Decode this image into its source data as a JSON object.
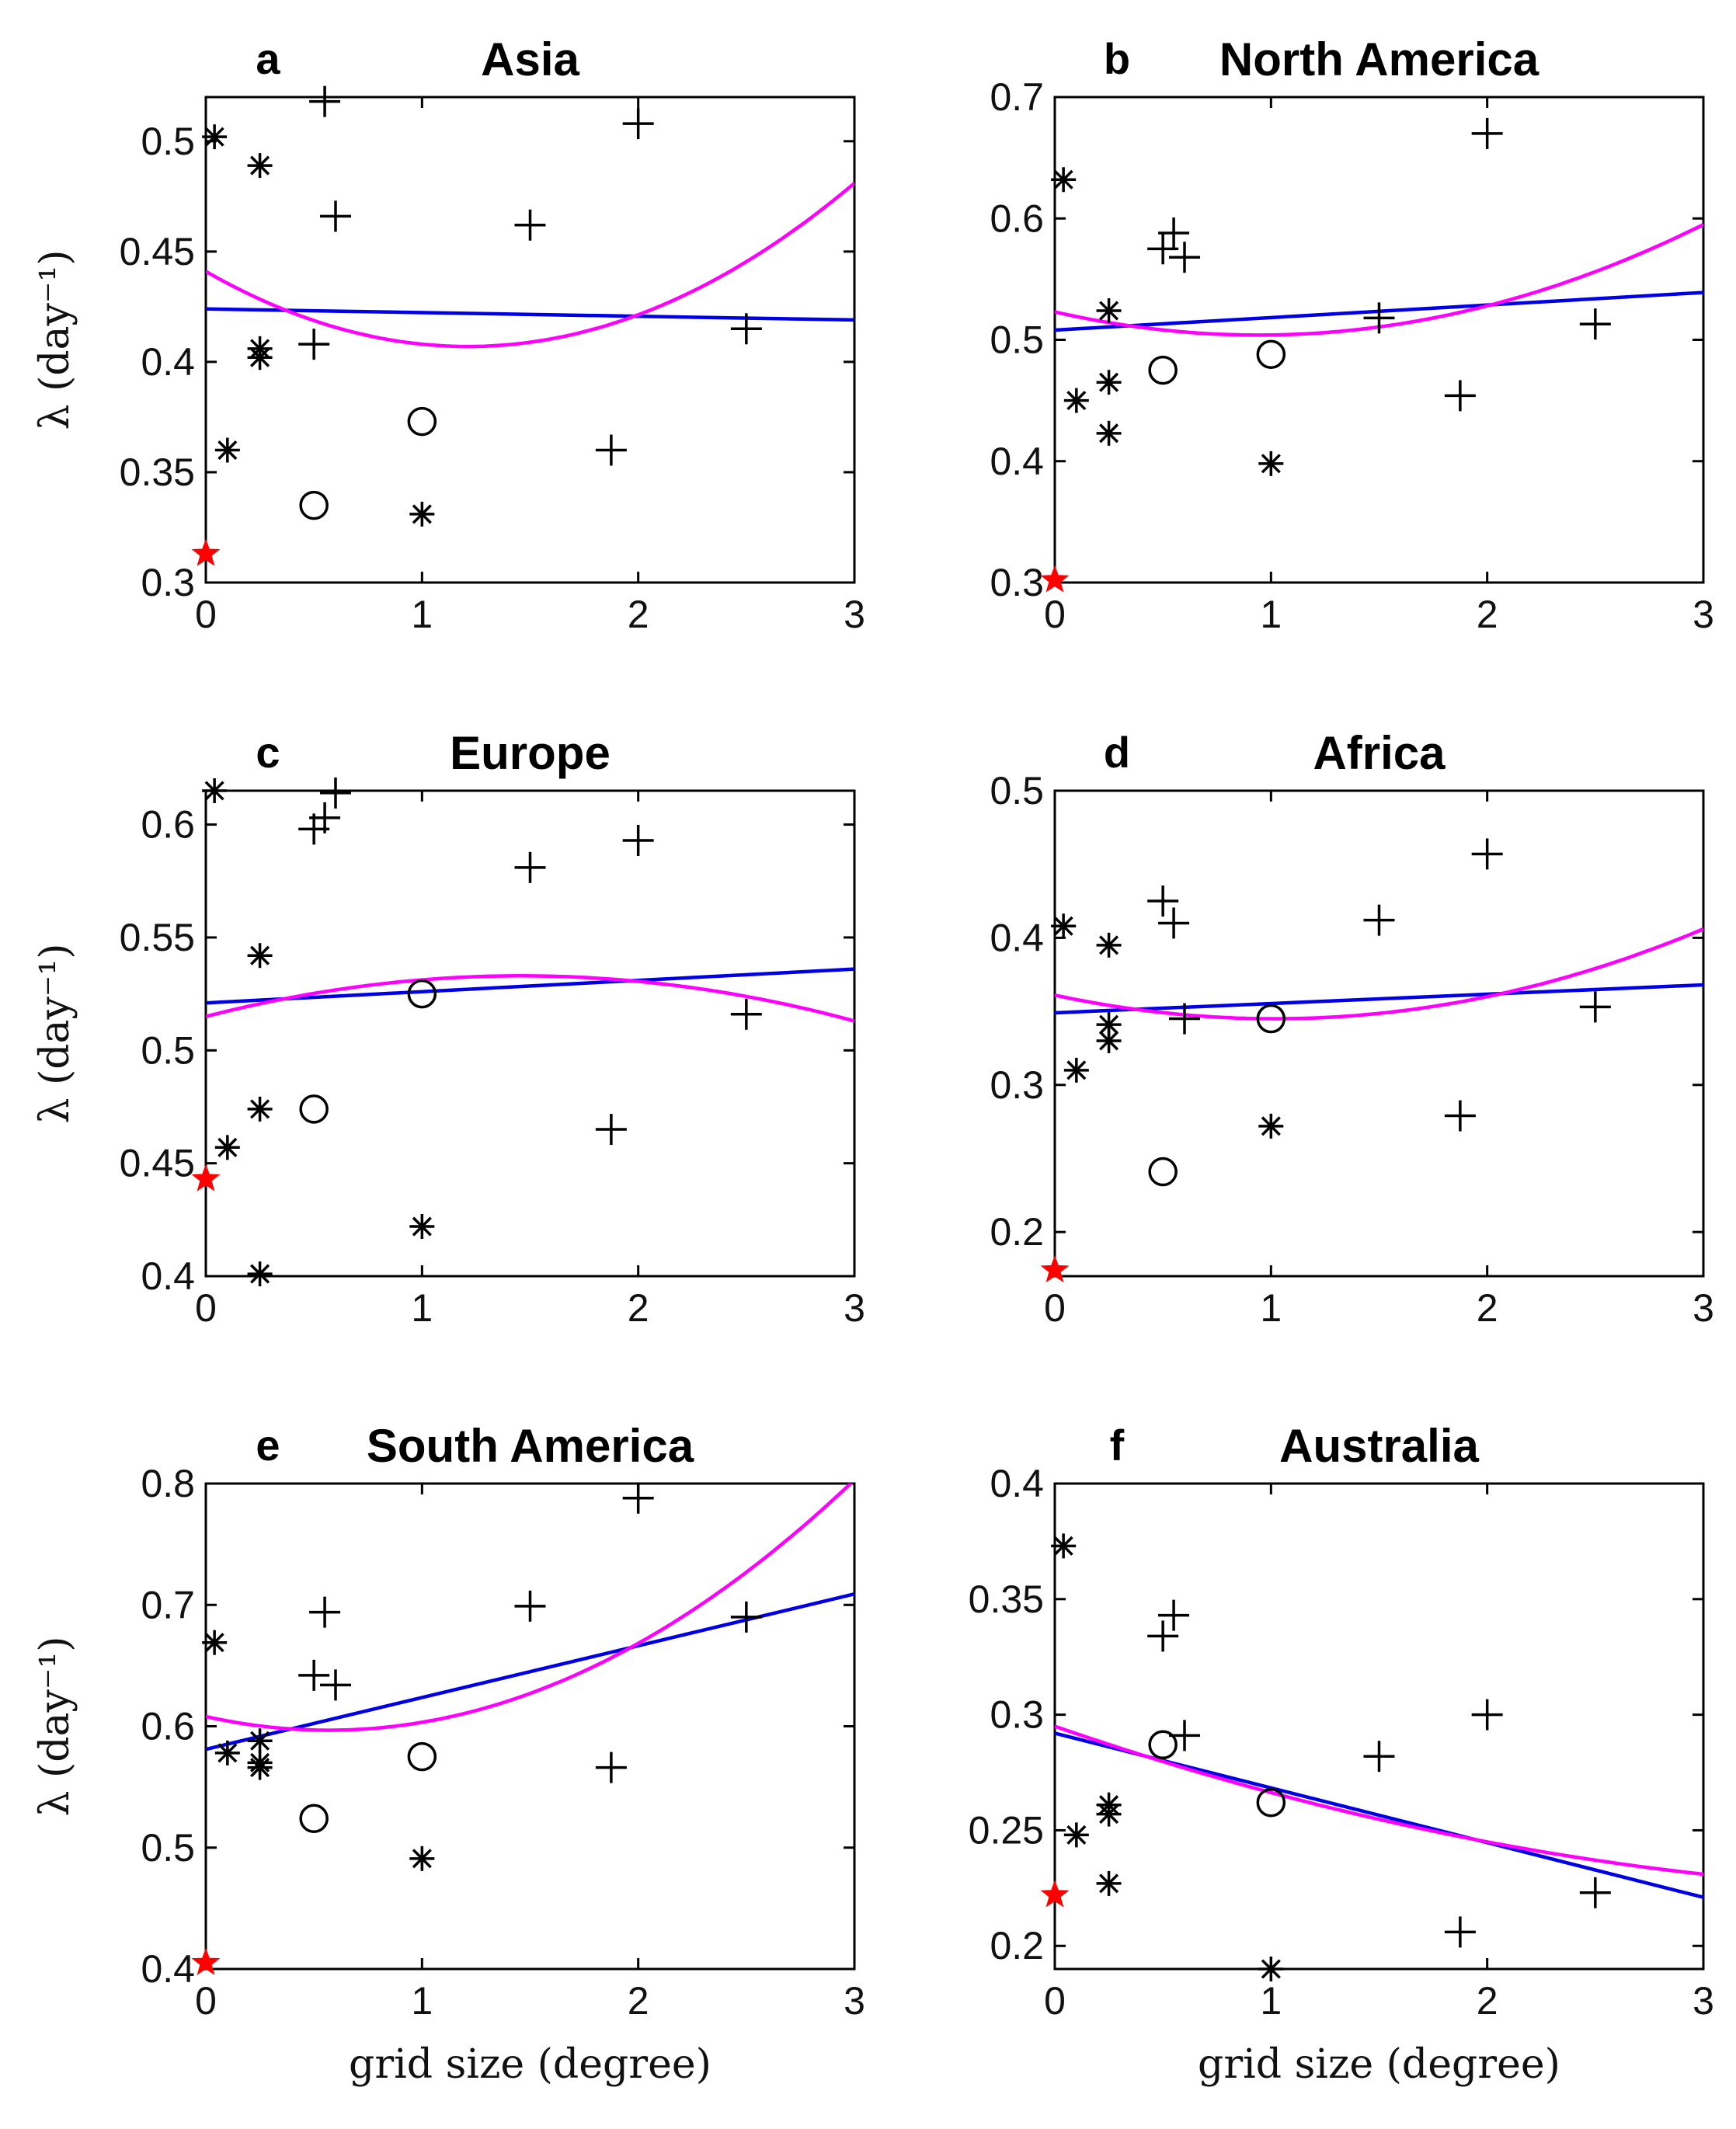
{
  "figure": {
    "xlabel": "grid size (degree)",
    "ylabel": "λ (day⁻¹)"
  },
  "colors": {
    "linear_fit": "#0000e6",
    "quadratic_fit": "#ff00ff",
    "reference": "#ff0000",
    "markers": "#000000"
  },
  "chart_data": [
    {
      "panel": "a",
      "title": "Asia",
      "type": "scatter",
      "xlim": [
        0,
        3
      ],
      "ylim": [
        0.3,
        0.52
      ],
      "xticks": [
        0,
        1,
        2,
        3
      ],
      "xtick_labels": [
        "0",
        "1",
        "2",
        "3"
      ],
      "yticks": [
        0.3,
        0.35,
        0.4,
        0.45,
        0.5
      ],
      "ytick_labels": [
        "0.3",
        "0.35",
        "0.4",
        "0.45",
        "0.5"
      ],
      "points": {
        "star": [
          [
            0.04,
            0.502
          ],
          [
            0.25,
            0.489
          ],
          [
            0.25,
            0.406
          ],
          [
            0.25,
            0.402
          ],
          [
            0.1,
            0.36
          ],
          [
            1.0,
            0.331
          ]
        ],
        "plus": [
          [
            0.55,
            0.518
          ],
          [
            0.6,
            0.466
          ],
          [
            0.5,
            0.408
          ],
          [
            1.5,
            0.462
          ],
          [
            2.0,
            0.508
          ],
          [
            2.5,
            0.415
          ],
          [
            1.875,
            0.36
          ]
        ],
        "circle": [
          [
            0.5,
            0.335
          ],
          [
            1.0,
            0.373
          ]
        ],
        "reference": [
          [
            0.0,
            0.313
          ]
        ]
      },
      "linear_fit": [
        [
          0,
          0.424
        ],
        [
          3,
          0.419
        ]
      ],
      "quadratic_fit": [
        [
          0,
          0.441
        ],
        [
          1.24,
          0.407
        ],
        [
          3,
          0.481
        ]
      ]
    },
    {
      "panel": "b",
      "title": "North America",
      "type": "scatter",
      "xlim": [
        0,
        3
      ],
      "ylim": [
        0.3,
        0.7
      ],
      "xticks": [
        0,
        1,
        2,
        3
      ],
      "xtick_labels": [
        "0",
        "1",
        "2",
        "3"
      ],
      "yticks": [
        0.3,
        0.4,
        0.5,
        0.6,
        0.7
      ],
      "ytick_labels": [
        "0.3",
        "0.4",
        "0.5",
        "0.6",
        "0.7"
      ],
      "points": {
        "star": [
          [
            0.04,
            0.632
          ],
          [
            0.25,
            0.524
          ],
          [
            0.25,
            0.465
          ],
          [
            0.1,
            0.45
          ],
          [
            0.25,
            0.423
          ],
          [
            1.0,
            0.398
          ]
        ],
        "plus": [
          [
            0.5,
            0.575
          ],
          [
            0.55,
            0.588
          ],
          [
            0.6,
            0.568
          ],
          [
            1.5,
            0.518
          ],
          [
            2.0,
            0.67
          ],
          [
            2.5,
            0.513
          ],
          [
            1.875,
            0.454
          ]
        ],
        "circle": [
          [
            0.5,
            0.475
          ],
          [
            1.0,
            0.488
          ]
        ],
        "reference": [
          [
            0.0,
            0.302
          ]
        ]
      },
      "linear_fit": [
        [
          0,
          0.508
        ],
        [
          3,
          0.539
        ]
      ],
      "quadratic_fit": [
        [
          0,
          0.523
        ],
        [
          1.0,
          0.504
        ],
        [
          3,
          0.595
        ]
      ]
    },
    {
      "panel": "c",
      "title": "Europe",
      "type": "scatter",
      "xlim": [
        0,
        3
      ],
      "ylim": [
        0.4,
        0.615
      ],
      "xticks": [
        0,
        1,
        2,
        3
      ],
      "xtick_labels": [
        "0",
        "1",
        "2",
        "3"
      ],
      "yticks": [
        0.4,
        0.45,
        0.5,
        0.55,
        0.6
      ],
      "ytick_labels": [
        "0.4",
        "0.45",
        "0.5",
        "0.55",
        "0.6"
      ],
      "points": {
        "star": [
          [
            0.04,
            0.615
          ],
          [
            0.25,
            0.542
          ],
          [
            0.25,
            0.474
          ],
          [
            0.1,
            0.457
          ],
          [
            0.25,
            0.401
          ],
          [
            1.0,
            0.422
          ]
        ],
        "plus": [
          [
            0.5,
            0.598
          ],
          [
            0.55,
            0.603
          ],
          [
            0.6,
            0.614
          ],
          [
            1.5,
            0.581
          ],
          [
            2.0,
            0.593
          ],
          [
            2.5,
            0.516
          ],
          [
            1.875,
            0.465
          ]
        ],
        "circle": [
          [
            0.5,
            0.474
          ],
          [
            1.0,
            0.525
          ]
        ],
        "reference": [
          [
            0.0,
            0.443
          ]
        ]
      },
      "linear_fit": [
        [
          0,
          0.521
        ],
        [
          3,
          0.536
        ]
      ],
      "quadratic_fit": [
        [
          0,
          0.515
        ],
        [
          1.5,
          0.533
        ],
        [
          3,
          0.513
        ]
      ]
    },
    {
      "panel": "d",
      "title": "Africa",
      "type": "scatter",
      "xlim": [
        0,
        3
      ],
      "ylim": [
        0.17,
        0.5
      ],
      "xticks": [
        0,
        1,
        2,
        3
      ],
      "xtick_labels": [
        "0",
        "1",
        "2",
        "3"
      ],
      "yticks": [
        0.2,
        0.3,
        0.4,
        0.5
      ],
      "ytick_labels": [
        "0.2",
        "0.3",
        "0.4",
        "0.5"
      ],
      "points": {
        "star": [
          [
            0.04,
            0.408
          ],
          [
            0.25,
            0.395
          ],
          [
            0.25,
            0.341
          ],
          [
            0.25,
            0.33
          ],
          [
            0.1,
            0.31
          ],
          [
            1.0,
            0.272
          ]
        ],
        "plus": [
          [
            0.5,
            0.425
          ],
          [
            0.55,
            0.41
          ],
          [
            0.6,
            0.345
          ],
          [
            1.5,
            0.412
          ],
          [
            2.0,
            0.457
          ],
          [
            2.5,
            0.353
          ],
          [
            1.875,
            0.279
          ]
        ],
        "circle": [
          [
            0.5,
            0.241
          ],
          [
            1.0,
            0.345
          ]
        ],
        "reference": [
          [
            0.0,
            0.174
          ]
        ]
      },
      "linear_fit": [
        [
          0,
          0.349
        ],
        [
          3,
          0.368
        ]
      ],
      "quadratic_fit": [
        [
          0,
          0.361
        ],
        [
          1.0,
          0.345
        ],
        [
          3,
          0.406
        ]
      ]
    },
    {
      "panel": "e",
      "title": "South America",
      "type": "scatter",
      "xlim": [
        0,
        3
      ],
      "ylim": [
        0.4,
        0.8
      ],
      "xticks": [
        0,
        1,
        2,
        3
      ],
      "xtick_labels": [
        "0",
        "1",
        "2",
        "3"
      ],
      "yticks": [
        0.4,
        0.5,
        0.6,
        0.7,
        0.8
      ],
      "ytick_labels": [
        "0.4",
        "0.5",
        "0.6",
        "0.7",
        "0.8"
      ],
      "points": {
        "star": [
          [
            0.04,
            0.669
          ],
          [
            0.1,
            0.578
          ],
          [
            0.25,
            0.588
          ],
          [
            0.25,
            0.57
          ],
          [
            0.25,
            0.566
          ],
          [
            1.0,
            0.491
          ]
        ],
        "plus": [
          [
            0.5,
            0.642
          ],
          [
            0.55,
            0.694
          ],
          [
            0.6,
            0.634
          ],
          [
            1.5,
            0.699
          ],
          [
            2.0,
            0.788
          ],
          [
            2.5,
            0.69
          ],
          [
            1.875,
            0.566
          ]
        ],
        "circle": [
          [
            0.5,
            0.524
          ],
          [
            1.0,
            0.575
          ]
        ],
        "reference": [
          [
            0.0,
            0.405
          ]
        ]
      },
      "linear_fit": [
        [
          0,
          0.581
        ],
        [
          3,
          0.709
        ]
      ],
      "quadratic_fit": [
        [
          0,
          0.608
        ],
        [
          0.65,
          0.597
        ],
        [
          3,
          0.803
        ]
      ]
    },
    {
      "panel": "f",
      "title": "Australia",
      "type": "scatter",
      "xlim": [
        0,
        3
      ],
      "ylim": [
        0.19,
        0.4
      ],
      "xticks": [
        0,
        1,
        2,
        3
      ],
      "xtick_labels": [
        "0",
        "1",
        "2",
        "3"
      ],
      "yticks": [
        0.2,
        0.25,
        0.3,
        0.35,
        0.4
      ],
      "ytick_labels": [
        "0.2",
        "0.25",
        "0.3",
        "0.35",
        "0.4"
      ],
      "points": {
        "star": [
          [
            0.04,
            0.373
          ],
          [
            0.25,
            0.261
          ],
          [
            0.25,
            0.257
          ],
          [
            0.1,
            0.248
          ],
          [
            0.25,
            0.227
          ],
          [
            1.0,
            0.19
          ]
        ],
        "plus": [
          [
            0.5,
            0.334
          ],
          [
            0.55,
            0.343
          ],
          [
            0.6,
            0.291
          ],
          [
            1.5,
            0.282
          ],
          [
            2.0,
            0.3
          ],
          [
            2.5,
            0.223
          ],
          [
            1.875,
            0.206
          ]
        ],
        "circle": [
          [
            0.5,
            0.287
          ],
          [
            1.0,
            0.262
          ]
        ],
        "reference": [
          [
            0.0,
            0.222
          ]
        ]
      },
      "linear_fit": [
        [
          0,
          0.292
        ],
        [
          3,
          0.221
        ]
      ],
      "quadratic_fit": [
        [
          0,
          0.295
        ],
        [
          2.0,
          0.245
        ],
        [
          3,
          0.231
        ]
      ]
    }
  ]
}
